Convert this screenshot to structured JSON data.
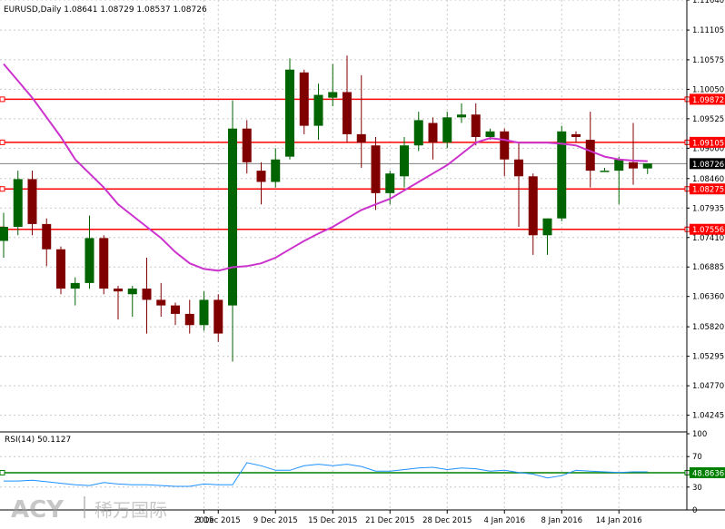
{
  "chart_data": [
    {
      "type": "candlestick",
      "title": "EURUSD,Daily  1.08641 1.08729 1.08537 1.08726",
      "ylim": [
        1.0398,
        1.1164
      ],
      "y_ticks": [
        "1.11640",
        "1.11105",
        "1.10575",
        "1.10050",
        "1.09525",
        "1.09000",
        "1.08460",
        "1.07935",
        "1.07410",
        "1.06885",
        "1.06360",
        "1.05820",
        "1.05295",
        "1.04770",
        "1.04245"
      ],
      "x_ticks": [
        {
          "label": "2015",
          "at": 14
        },
        {
          "label": "3 Dec 2015",
          "at": 15
        },
        {
          "label": "9 Dec 2015",
          "at": 19
        },
        {
          "label": "15 Dec 2015",
          "at": 23
        },
        {
          "label": "21 Dec 2015",
          "at": 27
        },
        {
          "label": "28 Dec 2015",
          "at": 31
        },
        {
          "label": "4 Jan 2016",
          "at": 35
        },
        {
          "label": "8 Jan 2016",
          "at": 39
        },
        {
          "label": "14 Jan 2016",
          "at": 43
        }
      ],
      "grid": true,
      "colors": {
        "up": "#006400",
        "down": "#800000",
        "ma": "#cc33cc",
        "level": "#ff0000",
        "current": "#808080"
      },
      "current_price": {
        "label": "1.08726",
        "value": 1.08726
      },
      "levels": [
        {
          "label": "1.09872",
          "value": 1.09872
        },
        {
          "label": "1.09105",
          "value": 1.09105
        },
        {
          "label": "1.08275",
          "value": 1.08275
        },
        {
          "label": "1.07556",
          "value": 1.07556
        }
      ],
      "candles": [
        {
          "o": 1.0735,
          "h": 1.0785,
          "l": 1.0705,
          "c": 1.076
        },
        {
          "o": 1.076,
          "h": 1.086,
          "l": 1.0745,
          "c": 1.0845
        },
        {
          "o": 1.0845,
          "h": 1.086,
          "l": 1.0745,
          "c": 1.0765
        },
        {
          "o": 1.0765,
          "h": 1.0775,
          "l": 1.069,
          "c": 1.072
        },
        {
          "o": 1.072,
          "h": 1.0725,
          "l": 1.064,
          "c": 1.065
        },
        {
          "o": 1.065,
          "h": 1.067,
          "l": 1.062,
          "c": 1.066
        },
        {
          "o": 1.066,
          "h": 1.078,
          "l": 1.065,
          "c": 1.074
        },
        {
          "o": 1.074,
          "h": 1.0745,
          "l": 1.064,
          "c": 1.065
        },
        {
          "o": 1.065,
          "h": 1.0655,
          "l": 1.0595,
          "c": 1.0645
        },
        {
          "o": 1.064,
          "h": 1.0655,
          "l": 1.06,
          "c": 1.065
        },
        {
          "o": 1.065,
          "h": 1.0705,
          "l": 1.057,
          "c": 1.063
        },
        {
          "o": 1.063,
          "h": 1.066,
          "l": 1.06,
          "c": 1.062
        },
        {
          "o": 1.062,
          "h": 1.0625,
          "l": 1.0585,
          "c": 1.0605
        },
        {
          "o": 1.0605,
          "h": 1.063,
          "l": 1.057,
          "c": 1.0585
        },
        {
          "o": 1.0585,
          "h": 1.0645,
          "l": 1.0575,
          "c": 1.063
        },
        {
          "o": 1.063,
          "h": 1.064,
          "l": 1.0555,
          "c": 1.057
        },
        {
          "o": 1.062,
          "h": 1.0985,
          "l": 1.052,
          "c": 1.0935
        },
        {
          "o": 1.0935,
          "h": 1.095,
          "l": 1.0855,
          "c": 1.0875
        },
        {
          "o": 1.086,
          "h": 1.0875,
          "l": 1.08,
          "c": 1.084
        },
        {
          "o": 1.084,
          "h": 1.09,
          "l": 1.083,
          "c": 1.088
        },
        {
          "o": 1.0885,
          "h": 1.106,
          "l": 1.088,
          "c": 1.104
        },
        {
          "o": 1.1035,
          "h": 1.104,
          "l": 1.0925,
          "c": 1.094
        },
        {
          "o": 1.094,
          "h": 1.1015,
          "l": 1.0915,
          "c": 1.0995
        },
        {
          "o": 1.099,
          "h": 1.105,
          "l": 1.0975,
          "c": 1.1
        },
        {
          "o": 1.1,
          "h": 1.1065,
          "l": 1.091,
          "c": 1.0925
        },
        {
          "o": 1.0925,
          "h": 1.103,
          "l": 1.0865,
          "c": 1.091
        },
        {
          "o": 1.0905,
          "h": 1.092,
          "l": 1.079,
          "c": 1.082
        },
        {
          "o": 1.082,
          "h": 1.086,
          "l": 1.08,
          "c": 1.0855
        },
        {
          "o": 1.085,
          "h": 1.092,
          "l": 1.083,
          "c": 1.0905
        },
        {
          "o": 1.0905,
          "h": 1.0965,
          "l": 1.0895,
          "c": 1.095
        },
        {
          "o": 1.0945,
          "h": 1.0955,
          "l": 1.088,
          "c": 1.091
        },
        {
          "o": 1.091,
          "h": 1.0965,
          "l": 1.09,
          "c": 1.0955
        },
        {
          "o": 1.0955,
          "h": 1.098,
          "l": 1.0945,
          "c": 1.096
        },
        {
          "o": 1.096,
          "h": 1.098,
          "l": 1.0905,
          "c": 1.092
        },
        {
          "o": 1.092,
          "h": 1.0935,
          "l": 1.0915,
          "c": 1.093
        },
        {
          "o": 1.093,
          "h": 1.0935,
          "l": 1.085,
          "c": 1.088
        },
        {
          "o": 1.088,
          "h": 1.091,
          "l": 1.076,
          "c": 1.085
        },
        {
          "o": 1.085,
          "h": 1.0855,
          "l": 1.071,
          "c": 1.0745
        },
        {
          "o": 1.0745,
          "h": 1.0775,
          "l": 1.071,
          "c": 1.0775
        },
        {
          "o": 1.0775,
          "h": 1.094,
          "l": 1.077,
          "c": 1.093
        },
        {
          "o": 1.0925,
          "h": 1.093,
          "l": 1.091,
          "c": 1.092
        },
        {
          "o": 1.0915,
          "h": 1.0965,
          "l": 1.083,
          "c": 1.086
        },
        {
          "o": 1.086,
          "h": 1.0865,
          "l": 1.086,
          "c": 1.086
        },
        {
          "o": 1.086,
          "h": 1.0885,
          "l": 1.08,
          "c": 1.088
        },
        {
          "o": 1.0875,
          "h": 1.0945,
          "l": 1.0835,
          "c": 1.0864
        },
        {
          "o": 1.0864,
          "h": 1.0873,
          "l": 1.0854,
          "c": 1.0873
        }
      ],
      "ma": [
        1.105,
        1.102,
        1.099,
        1.0955,
        1.092,
        1.088,
        1.0855,
        1.083,
        1.08,
        1.078,
        1.076,
        1.074,
        1.0715,
        1.0695,
        1.0685,
        1.0682,
        1.0688,
        1.069,
        1.0695,
        1.0705,
        1.072,
        1.0735,
        1.0748,
        1.076,
        1.0775,
        1.079,
        1.08,
        1.081,
        1.0825,
        1.084,
        1.0855,
        1.087,
        1.089,
        1.091,
        1.0918,
        1.0915,
        1.091,
        1.091,
        1.091,
        1.0908,
        1.0905,
        1.0895,
        1.0885,
        1.088,
        1.0878,
        1.0877
      ]
    },
    {
      "type": "line",
      "title": "RSI(14) 50.1127",
      "ylim": [
        0,
        100
      ],
      "y_ticks": [
        "100",
        "70",
        "30",
        "0"
      ],
      "level": {
        "label": "48.8636",
        "value": 48.8636
      },
      "values": [
        38,
        38,
        39,
        37,
        35,
        33,
        32,
        36,
        34,
        33,
        33,
        32,
        31,
        31,
        34,
        33,
        33,
        62,
        58,
        52,
        52,
        58,
        60,
        58,
        60,
        57,
        51,
        51,
        53,
        55,
        56,
        53,
        55,
        54,
        51,
        52,
        49,
        47,
        42,
        45,
        52,
        51,
        50,
        49,
        50,
        50
      ]
    }
  ],
  "watermark": {
    "brand": "ACY",
    "chinese": "稀万国际"
  }
}
